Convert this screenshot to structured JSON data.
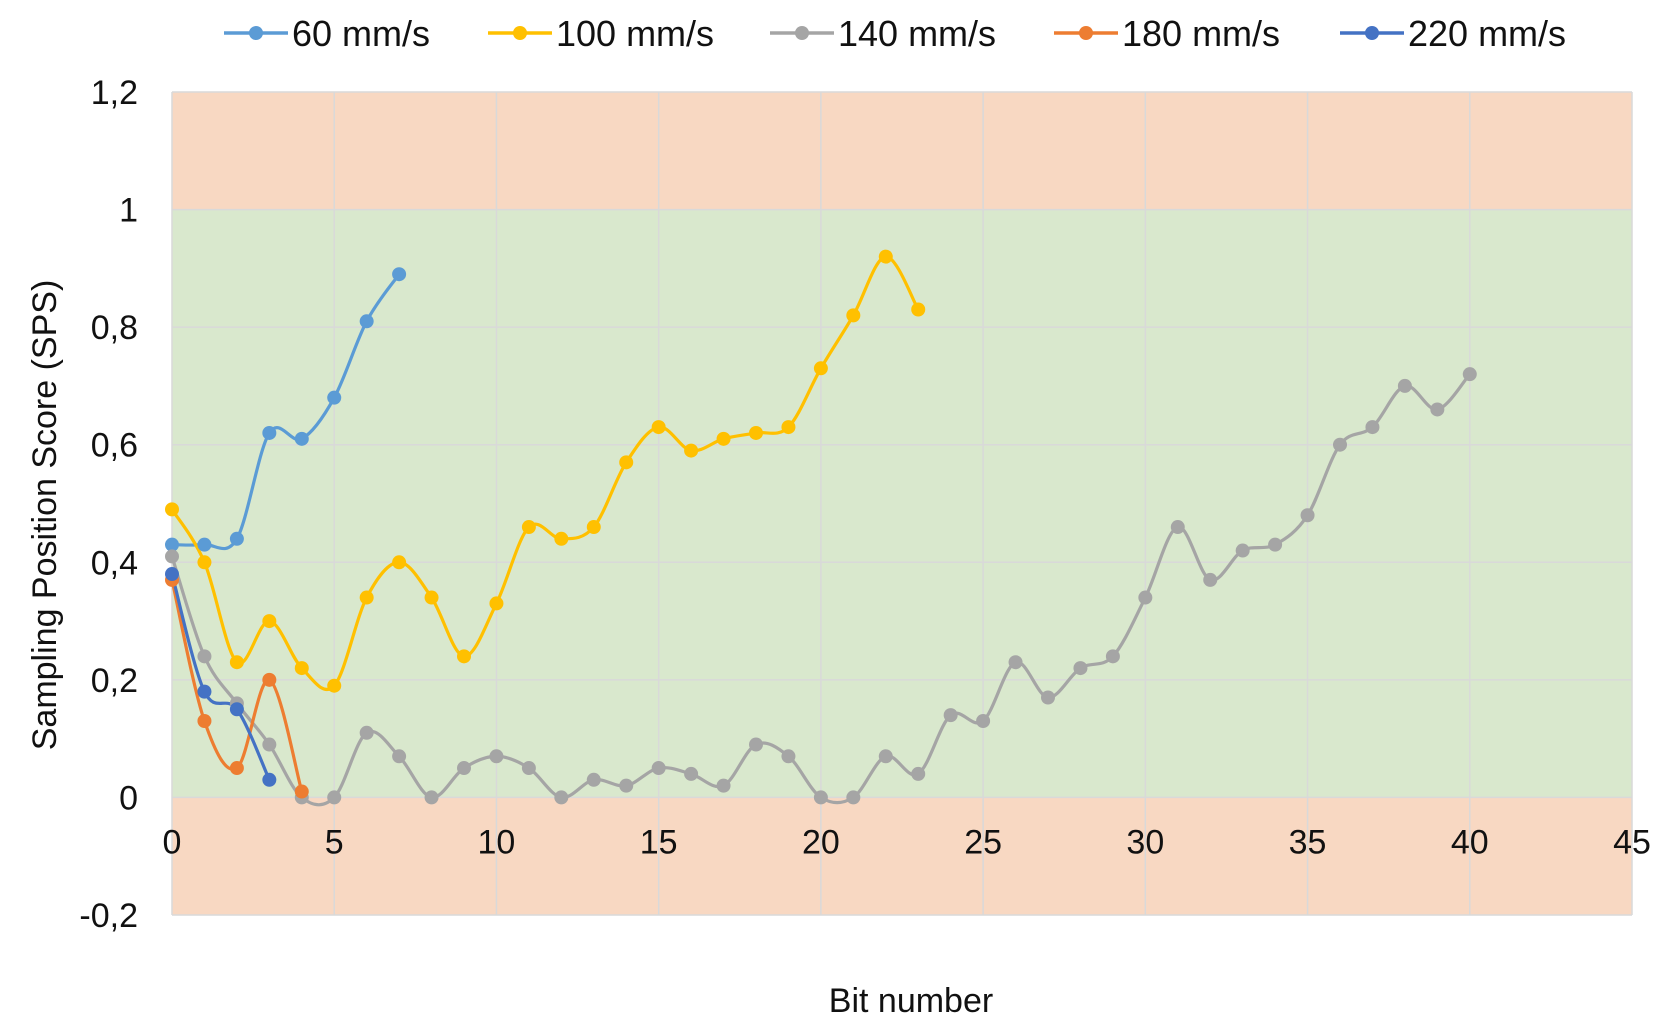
{
  "chart_data": {
    "type": "line",
    "title": "",
    "xlabel": "Bit number",
    "ylabel": "Sampling Position Score (SPS)",
    "xlim": [
      0,
      45
    ],
    "ylim": [
      -0.2,
      1.2
    ],
    "x_ticks": [
      0,
      5,
      10,
      15,
      20,
      25,
      30,
      35,
      40,
      45
    ],
    "x_tick_labels": [
      "0",
      "5",
      "10",
      "15",
      "20",
      "25",
      "30",
      "35",
      "40",
      "45"
    ],
    "y_ticks": [
      -0.2,
      0,
      0.2,
      0.4,
      0.6,
      0.8,
      1,
      1.2
    ],
    "y_tick_labels": [
      "-0,2",
      "0",
      "0,2",
      "0,4",
      "0,6",
      "0,8",
      "1",
      "1,2"
    ],
    "grid": true,
    "legend_position": "top",
    "bands": [
      {
        "y0": 1.0,
        "y1": 1.2,
        "color": "#f8d8c2"
      },
      {
        "y0": 0.0,
        "y1": 1.0,
        "color": "#d9e8cd"
      },
      {
        "y0": -0.2,
        "y1": 0.0,
        "color": "#f8d8c2"
      }
    ],
    "series": [
      {
        "name": "60 mm/s",
        "color": "#5b9bd5",
        "x": [
          0,
          1,
          2,
          3,
          4,
          5,
          6,
          7
        ],
        "y": [
          0.43,
          0.43,
          0.44,
          0.62,
          0.61,
          0.68,
          0.81,
          0.89
        ]
      },
      {
        "name": "100 mm/s",
        "color": "#ffc000",
        "x": [
          0,
          1,
          2,
          3,
          4,
          5,
          6,
          7,
          8,
          9,
          10,
          11,
          12,
          13,
          14,
          15,
          16,
          17,
          18,
          19,
          20,
          21,
          22,
          23
        ],
        "y": [
          0.49,
          0.4,
          0.23,
          0.3,
          0.22,
          0.19,
          0.34,
          0.4,
          0.34,
          0.24,
          0.33,
          0.46,
          0.44,
          0.46,
          0.57,
          0.63,
          0.59,
          0.61,
          0.62,
          0.63,
          0.73,
          0.82,
          0.92,
          0.83
        ]
      },
      {
        "name": "140 mm/s",
        "color": "#a5a5a5",
        "x": [
          0,
          1,
          2,
          3,
          4,
          5,
          6,
          7,
          8,
          9,
          10,
          11,
          12,
          13,
          14,
          15,
          16,
          17,
          18,
          19,
          20,
          21,
          22,
          23,
          24,
          25,
          26,
          27,
          28,
          29,
          30,
          31,
          32,
          33,
          34,
          35,
          36,
          37,
          38,
          39,
          40
        ],
        "y": [
          0.41,
          0.24,
          0.16,
          0.09,
          0.0,
          0.0,
          0.11,
          0.07,
          0.0,
          0.05,
          0.07,
          0.05,
          0.0,
          0.03,
          0.02,
          0.05,
          0.04,
          0.02,
          0.09,
          0.07,
          0.0,
          0.0,
          0.07,
          0.04,
          0.14,
          0.13,
          0.23,
          0.17,
          0.22,
          0.24,
          0.34,
          0.46,
          0.37,
          0.42,
          0.43,
          0.48,
          0.6,
          0.63,
          0.7,
          0.66,
          0.72
        ]
      },
      {
        "name": "180 mm/s",
        "color": "#ed7d31",
        "x": [
          0,
          1,
          2,
          3,
          4
        ],
        "y": [
          0.37,
          0.13,
          0.05,
          0.2,
          0.01
        ]
      },
      {
        "name": "220 mm/s",
        "color": "#4472c4",
        "x": [
          0,
          1,
          2,
          3
        ],
        "y": [
          0.38,
          0.18,
          0.15,
          0.03
        ]
      }
    ]
  }
}
